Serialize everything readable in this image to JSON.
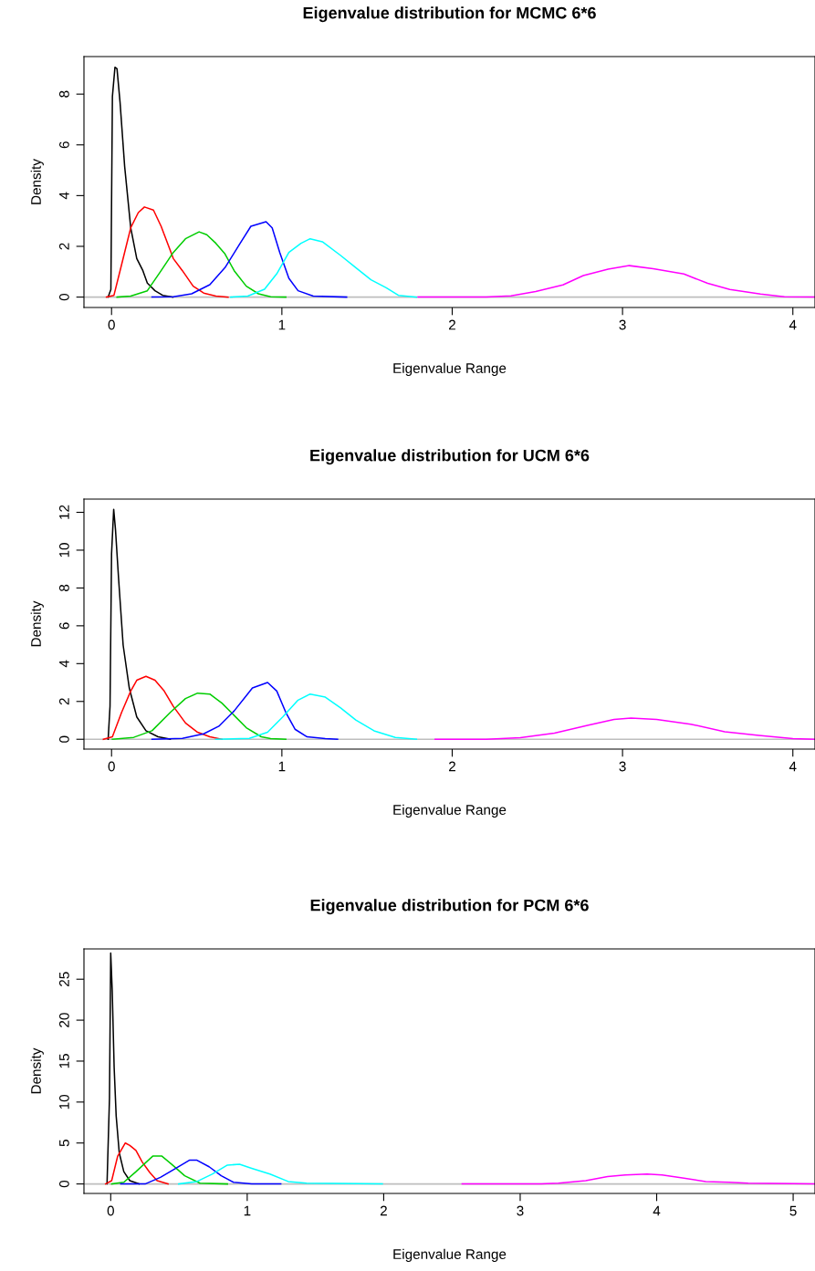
{
  "chart_data": [
    {
      "type": "line",
      "title": "Eigenvalue distribution for MCMC 6*6",
      "xlabel": "Eigenvalue Range",
      "ylabel": "Density",
      "xlim": [
        -0.162,
        4.13
      ],
      "ylim": [
        -0.41,
        9.48
      ],
      "xticks": [
        0,
        1,
        2,
        3,
        4
      ],
      "yticks": [
        0,
        2,
        4,
        6,
        8
      ],
      "ref_lines": [
        {
          "axis": "y",
          "value": 0,
          "color": "#bebebe"
        }
      ],
      "series": [
        {
          "color": "#000000",
          "x": [
            -0.02,
            -0.004,
            0.005,
            0.02,
            0.032,
            0.05,
            0.077,
            0.1125,
            0.148,
            0.184,
            0.21,
            0.255,
            0.3,
            0.36
          ],
          "values": [
            0,
            0.3,
            7.9,
            9.06,
            9.0,
            7.67,
            5.14,
            2.73,
            1.52,
            1.04,
            0.55,
            0.25,
            0.07,
            0
          ]
        },
        {
          "color": "#ff0000",
          "x": [
            -0.03,
            0.014,
            0.059,
            0.1125,
            0.157,
            0.193,
            0.246,
            0.291,
            0.3625,
            0.416,
            0.479,
            0.541,
            0.6125,
            0.684
          ],
          "values": [
            0,
            0.07,
            1.28,
            2.73,
            3.33,
            3.55,
            3.43,
            2.79,
            1.52,
            1.04,
            0.43,
            0.16,
            0.04,
            0
          ]
        },
        {
          "color": "#00cd00",
          "x": [
            0.032,
            0.1125,
            0.21,
            0.291,
            0.3625,
            0.434,
            0.514,
            0.559,
            0.6125,
            0.666,
            0.72,
            0.791,
            0.8625,
            0.934,
            1.023
          ],
          "values": [
            0,
            0.04,
            0.25,
            1.04,
            1.76,
            2.3,
            2.57,
            2.46,
            2.12,
            1.7,
            1.04,
            0.43,
            0.13,
            0.01,
            0
          ]
        },
        {
          "color": "#0000ff",
          "x": [
            0.2375,
            0.3625,
            0.47,
            0.577,
            0.666,
            0.755,
            0.818,
            0.907,
            0.943,
            0.9875,
            1.041,
            1.095,
            1.184,
            1.38
          ],
          "values": [
            0,
            0.01,
            0.13,
            0.49,
            1.16,
            2.12,
            2.79,
            2.97,
            2.73,
            1.76,
            0.74,
            0.25,
            0.04,
            0
          ]
        },
        {
          "color": "#00ffff",
          "x": [
            0.7,
            0.8,
            0.898,
            0.97,
            1.041,
            1.1125,
            1.166,
            1.2375,
            1.345,
            1.434,
            1.523,
            1.6125,
            1.684,
            1.79
          ],
          "values": [
            0,
            0.04,
            0.31,
            0.92,
            1.76,
            2.12,
            2.3,
            2.18,
            1.64,
            1.16,
            0.68,
            0.37,
            0.07,
            0
          ]
        },
        {
          "color": "#ff00ff",
          "x": [
            1.8,
            2.2,
            2.345,
            2.49,
            2.65,
            2.77,
            2.915,
            3.04,
            3.18,
            3.36,
            3.5,
            3.63,
            3.81,
            3.95,
            4.13
          ],
          "values": [
            0,
            0,
            0.05,
            0.22,
            0.48,
            0.85,
            1.1,
            1.24,
            1.12,
            0.91,
            0.54,
            0.3,
            0.12,
            0.01,
            0
          ]
        }
      ]
    },
    {
      "type": "line",
      "title": "Eigenvalue distribution for UCM 6*6",
      "xlabel": "Eigenvalue Range",
      "ylabel": "Density",
      "xlim": [
        -0.162,
        4.13
      ],
      "ylim": [
        -0.52,
        12.7
      ],
      "xticks": [
        0,
        1,
        2,
        3,
        4
      ],
      "yticks": [
        0,
        2,
        4,
        6,
        8,
        10,
        12
      ],
      "ref_lines": [
        {
          "axis": "y",
          "value": 0,
          "color": "#bebebe"
        }
      ],
      "series": [
        {
          "color": "#000000",
          "x": [
            -0.02,
            -0.009,
            0,
            0.0125,
            0.023,
            0.041,
            0.068,
            0.104,
            0.148,
            0.202,
            0.273,
            0.345
          ],
          "values": [
            0,
            1.74,
            9.8,
            12.16,
            11.1,
            8.53,
            4.98,
            2.71,
            1.18,
            0.45,
            0.13,
            0
          ]
        },
        {
          "color": "#ff0000",
          "x": [
            -0.048,
            0.005,
            0.059,
            0.1125,
            0.148,
            0.202,
            0.255,
            0.309,
            0.3625,
            0.434,
            0.505,
            0.577,
            0.648
          ],
          "values": [
            0,
            0.13,
            1.42,
            2.55,
            3.12,
            3.33,
            3.12,
            2.55,
            1.74,
            0.86,
            0.37,
            0.13,
            0
          ]
        },
        {
          "color": "#00cd00",
          "x": [
            0.005,
            0.13,
            0.2375,
            0.345,
            0.434,
            0.505,
            0.577,
            0.648,
            0.72,
            0.791,
            0.879,
            0.934,
            1.023
          ],
          "values": [
            0,
            0.1,
            0.45,
            1.42,
            2.15,
            2.44,
            2.39,
            1.91,
            1.26,
            0.61,
            0.13,
            0.03,
            0
          ]
        },
        {
          "color": "#0000ff",
          "x": [
            0.2375,
            0.416,
            0.541,
            0.63,
            0.72,
            0.827,
            0.916,
            0.97,
            1.023,
            1.077,
            1.148,
            1.255,
            1.327
          ],
          "values": [
            0,
            0.05,
            0.29,
            0.69,
            1.5,
            2.71,
            3.0,
            2.55,
            1.42,
            0.53,
            0.13,
            0.03,
            0
          ]
        },
        {
          "color": "#00ffff",
          "x": [
            0.6125,
            0.809,
            0.916,
            1.005,
            1.095,
            1.166,
            1.255,
            1.345,
            1.434,
            1.541,
            1.666,
            1.79
          ],
          "values": [
            0,
            0.05,
            0.37,
            1.18,
            2.07,
            2.39,
            2.23,
            1.66,
            1.02,
            0.45,
            0.1,
            0
          ]
        },
        {
          "color": "#ff00ff",
          "x": [
            1.9,
            2.2,
            2.4,
            2.6,
            2.8,
            2.95,
            3.05,
            3.2,
            3.4,
            3.6,
            3.8,
            4.0,
            4.13
          ],
          "values": [
            0,
            0,
            0.08,
            0.33,
            0.75,
            1.05,
            1.12,
            1.05,
            0.8,
            0.4,
            0.2,
            0.03,
            0
          ]
        }
      ]
    },
    {
      "type": "line",
      "title": "Eigenvalue distribution for PCM 6*6",
      "xlabel": "Eigenvalue Range",
      "ylabel": "Density",
      "xlim": [
        -0.196,
        5.16
      ],
      "ylim": [
        -1.16,
        28.7
      ],
      "xticks": [
        0,
        1,
        2,
        3,
        4,
        5
      ],
      "yticks": [
        0,
        5,
        10,
        15,
        20,
        25
      ],
      "ref_lines": [
        {
          "axis": "y",
          "value": 0,
          "color": "#bebebe"
        }
      ],
      "series": [
        {
          "color": "#000000",
          "x": [
            -0.027,
            -0.009,
            0,
            0.011,
            0.025,
            0.04,
            0.0625,
            0.096,
            0.14,
            0.2076
          ],
          "values": [
            0,
            10.5,
            28.2,
            23.6,
            14.3,
            8.3,
            3.8,
            1.5,
            0.4,
            0
          ]
        },
        {
          "color": "#ff0000",
          "x": [
            -0.038,
            0.007,
            0.051,
            0.107,
            0.14,
            0.185,
            0.23,
            0.286,
            0.34,
            0.42
          ],
          "values": [
            0,
            0.4,
            3.4,
            5.0,
            4.7,
            4.1,
            2.7,
            1.4,
            0.4,
            0
          ]
        },
        {
          "color": "#00cd00",
          "x": [
            0.007,
            0.096,
            0.185,
            0.308,
            0.375,
            0.453,
            0.542,
            0.654,
            0.855
          ],
          "values": [
            0,
            0.2,
            1.5,
            3.4,
            3.4,
            2.3,
            1.0,
            0.1,
            0
          ]
        },
        {
          "color": "#0000ff",
          "x": [
            0.074,
            0.252,
            0.364,
            0.475,
            0.576,
            0.632,
            0.721,
            0.81,
            0.9,
            1.033,
            1.246
          ],
          "values": [
            0,
            0.0,
            0.8,
            1.9,
            2.9,
            2.9,
            2.1,
            1.0,
            0.2,
            0.0,
            0
          ]
        },
        {
          "color": "#00ffff",
          "x": [
            0.498,
            0.632,
            0.743,
            0.855,
            0.944,
            1.033,
            1.167,
            1.3,
            1.435,
            1.99
          ],
          "values": [
            0,
            0.3,
            1.2,
            2.3,
            2.4,
            1.9,
            1.2,
            0.3,
            0.1,
            0
          ]
        },
        {
          "color": "#ff00ff",
          "x": [
            2.575,
            3.155,
            3.28,
            3.48,
            3.64,
            3.77,
            3.93,
            4.04,
            4.2,
            4.36,
            4.53,
            4.67,
            5.16
          ],
          "values": [
            0,
            0,
            0.1,
            0.4,
            0.9,
            1.1,
            1.2,
            1.1,
            0.7,
            0.3,
            0.2,
            0.1,
            0
          ]
        }
      ]
    }
  ]
}
